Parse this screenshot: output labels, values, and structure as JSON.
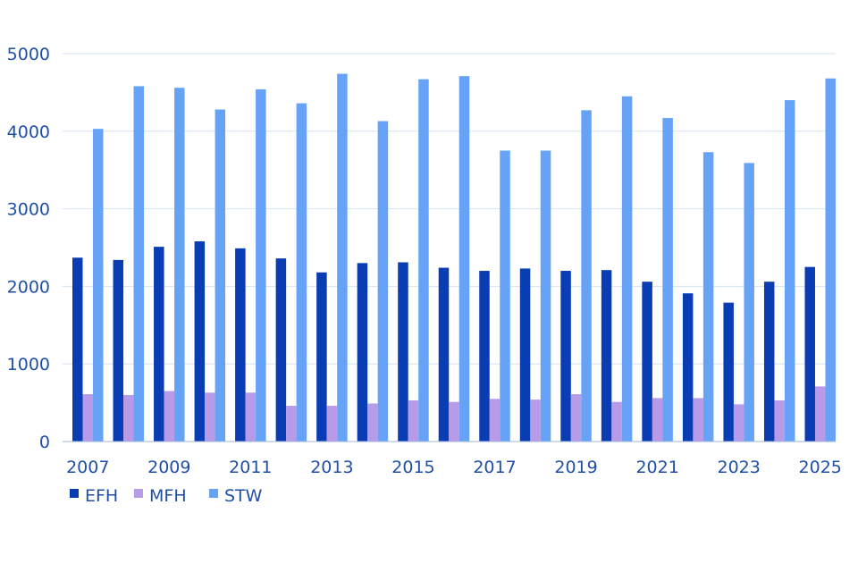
{
  "chart_data": {
    "type": "bar",
    "categories": [
      "2007",
      "2008",
      "2009",
      "2010",
      "2011",
      "2012",
      "2013",
      "2014",
      "2015",
      "2016",
      "2017",
      "2018",
      "2019",
      "2020",
      "2021",
      "2022",
      "2023",
      "2024",
      "2025"
    ],
    "x_tick_labels": [
      "2007",
      "2009",
      "2011",
      "2013",
      "2015",
      "2017",
      "2019",
      "2021",
      "2023",
      "2025"
    ],
    "y_ticks": [
      0,
      1000,
      2000,
      3000,
      4000,
      5000
    ],
    "ylim": [
      0,
      5000
    ],
    "grid": true,
    "legend_position": "bottom-left",
    "series": [
      {
        "name": "EFH",
        "color": "#0a3cb4",
        "values": [
          2370,
          2340,
          2510,
          2580,
          2490,
          2360,
          2180,
          2300,
          2310,
          2240,
          2200,
          2230,
          2200,
          2210,
          2060,
          1910,
          1790,
          2060,
          2250
        ]
      },
      {
        "name": "MFH",
        "color": "#b79ae8",
        "values": [
          610,
          600,
          650,
          630,
          630,
          460,
          460,
          490,
          530,
          510,
          550,
          540,
          610,
          510,
          560,
          560,
          480,
          530,
          710
        ]
      },
      {
        "name": "STW",
        "color": "#66a3f7",
        "values": [
          4030,
          4580,
          4560,
          4280,
          4540,
          4360,
          4740,
          4130,
          4670,
          4710,
          3750,
          3750,
          4270,
          4450,
          4170,
          3730,
          3590,
          4400,
          4680
        ]
      }
    ]
  }
}
